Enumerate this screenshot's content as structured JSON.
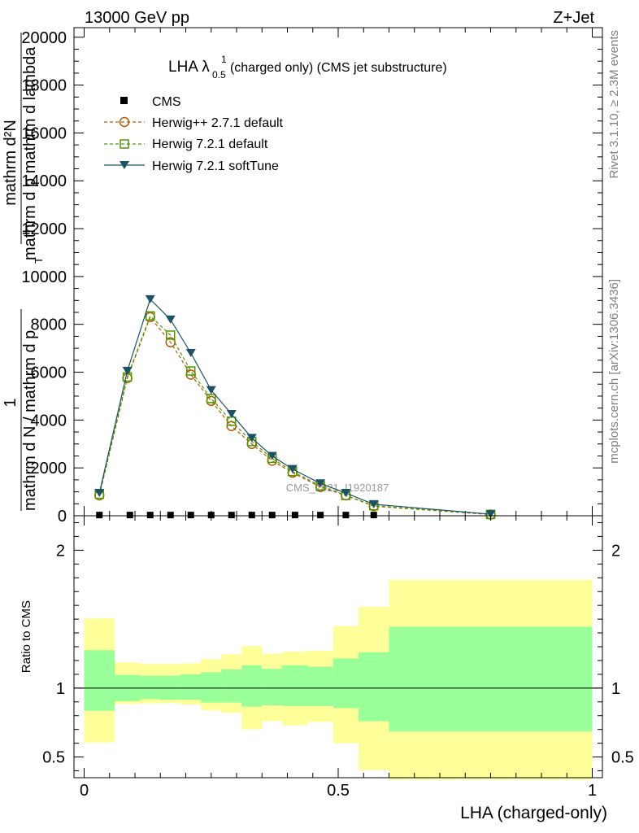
{
  "header": {
    "energy_label": "13000 GeV pp",
    "process_label": "Z+Jet"
  },
  "side_labels": {
    "rivet": "Rivet 3.1.10, ≥ 2.3M events",
    "mcplots": "mcplots.cern.ch [arXiv:1306.3436]"
  },
  "chart_data": [
    {
      "type": "line",
      "panel": "main",
      "title_main": "LHA λ",
      "title_sup": "1",
      "title_sub": "0.5",
      "title_rest": " (charged only) (CMS jet substructure)",
      "ylabel": "1 / mathrm d²N / mathrm d p_T mathrm d lambda · mathrm d²N / mathrm d p_T mathrm d lambda",
      "ylabel_numerator": "1",
      "ylabel_denominator": "mathrm d N / mathrm d p",
      "ylabel_right_top": "mathrm d²N",
      "ylabel_right_bottom": "mathrm d p  mathrm d lambda",
      "ylabel_sub": "T",
      "watermark": "CMS_2021_I1920187",
      "xlim": [
        -0.02,
        1.02
      ],
      "ylim": [
        0,
        20400
      ],
      "yticks": [
        0,
        2000,
        4000,
        6000,
        8000,
        10000,
        12000,
        14000,
        16000,
        18000,
        20000
      ],
      "ytick_labels": [
        "0",
        "2000",
        "4000",
        "6000",
        "8000",
        "10000",
        "12000",
        "14000",
        "16000",
        "18000",
        "20000"
      ],
      "legend_position": "top-left",
      "series": [
        {
          "name": "CMS",
          "style": "black-square",
          "color": "#000000",
          "x": [
            0.03,
            0.09,
            0.13,
            0.17,
            0.21,
            0.25,
            0.29,
            0.33,
            0.37,
            0.415,
            0.465,
            0.515,
            0.57
          ],
          "y": [
            30,
            30,
            30,
            30,
            30,
            30,
            30,
            30,
            30,
            30,
            30,
            30,
            30
          ]
        },
        {
          "name": "Herwig++ 2.7.1 default",
          "style": "dashed-circle",
          "color": "#b35900",
          "x": [
            0.03,
            0.085,
            0.13,
            0.17,
            0.21,
            0.25,
            0.29,
            0.33,
            0.37,
            0.41,
            0.465,
            0.515,
            0.57,
            0.8
          ],
          "y": [
            850,
            5750,
            8300,
            7250,
            5900,
            4800,
            3750,
            3000,
            2300,
            1800,
            1200,
            850,
            400,
            50
          ]
        },
        {
          "name": "Herwig 7.2.1 default",
          "style": "dashed-square",
          "color": "#4d9900",
          "x": [
            0.03,
            0.085,
            0.13,
            0.17,
            0.21,
            0.25,
            0.29,
            0.33,
            0.37,
            0.41,
            0.465,
            0.515,
            0.57,
            0.8
          ],
          "y": [
            900,
            5800,
            8350,
            7550,
            6050,
            4900,
            3950,
            3100,
            2400,
            1850,
            1250,
            850,
            420,
            55
          ]
        },
        {
          "name": "Herwig 7.2.1 softTune",
          "style": "solid-triangle",
          "color": "#1a5266",
          "x": [
            0.03,
            0.085,
            0.13,
            0.17,
            0.21,
            0.25,
            0.29,
            0.33,
            0.37,
            0.41,
            0.465,
            0.515,
            0.57,
            0.8
          ],
          "y": [
            950,
            6050,
            9050,
            8200,
            6800,
            5250,
            4250,
            3250,
            2500,
            1950,
            1350,
            950,
            480,
            65
          ]
        }
      ]
    },
    {
      "type": "area",
      "panel": "ratio",
      "ylabel": "Ratio to CMS",
      "xlabel": "LHA (charged-only)",
      "xlim": [
        -0.02,
        1.02
      ],
      "ylim": [
        0.35,
        2.25
      ],
      "xticks": [
        0,
        0.5,
        1
      ],
      "xtick_labels": [
        "0",
        "0.5",
        "1"
      ],
      "yticks": [
        0.5,
        1,
        2
      ],
      "ytick_labels": [
        "0.5",
        "1",
        "2"
      ],
      "reference_line": 1,
      "bands": {
        "inner_color": "#99ff99",
        "outer_color": "#ffff99",
        "bins": [
          {
            "x0": 0.0,
            "x1": 0.06,
            "inner": [
              0.835,
              1.275
            ],
            "outer": [
              0.605,
              1.505
            ]
          },
          {
            "x0": 0.06,
            "x1": 0.11,
            "inner": [
              0.905,
              1.095
            ],
            "outer": [
              0.885,
              1.185
            ]
          },
          {
            "x0": 0.11,
            "x1": 0.15,
            "inner": [
              0.92,
              1.09
            ],
            "outer": [
              0.89,
              1.175
            ]
          },
          {
            "x0": 0.15,
            "x1": 0.19,
            "inner": [
              0.915,
              1.09
            ],
            "outer": [
              0.89,
              1.175
            ]
          },
          {
            "x0": 0.19,
            "x1": 0.23,
            "inner": [
              0.915,
              1.1
            ],
            "outer": [
              0.88,
              1.18
            ]
          },
          {
            "x0": 0.23,
            "x1": 0.27,
            "inner": [
              0.895,
              1.115
            ],
            "outer": [
              0.84,
              1.21
            ]
          },
          {
            "x0": 0.27,
            "x1": 0.31,
            "inner": [
              0.895,
              1.135
            ],
            "outer": [
              0.82,
              1.245
            ]
          },
          {
            "x0": 0.31,
            "x1": 0.35,
            "inner": [
              0.865,
              1.165
            ],
            "outer": [
              0.7,
              1.305
            ]
          },
          {
            "x0": 0.35,
            "x1": 0.39,
            "inner": [
              0.875,
              1.14
            ],
            "outer": [
              0.76,
              1.25
            ]
          },
          {
            "x0": 0.39,
            "x1": 0.44,
            "inner": [
              0.87,
              1.165
            ],
            "outer": [
              0.73,
              1.265
            ]
          },
          {
            "x0": 0.44,
            "x1": 0.49,
            "inner": [
              0.87,
              1.155
            ],
            "outer": [
              0.755,
              1.27
            ]
          },
          {
            "x0": 0.49,
            "x1": 0.54,
            "inner": [
              0.855,
              1.215
            ],
            "outer": [
              0.6,
              1.45
            ]
          },
          {
            "x0": 0.54,
            "x1": 0.6,
            "inner": [
              0.76,
              1.26
            ],
            "outer": [
              0.405,
              1.59
            ]
          },
          {
            "x0": 0.6,
            "x1": 1.0,
            "inner": [
              0.685,
              1.445
            ],
            "outer": [
              0.335,
              1.785
            ]
          }
        ]
      }
    }
  ]
}
